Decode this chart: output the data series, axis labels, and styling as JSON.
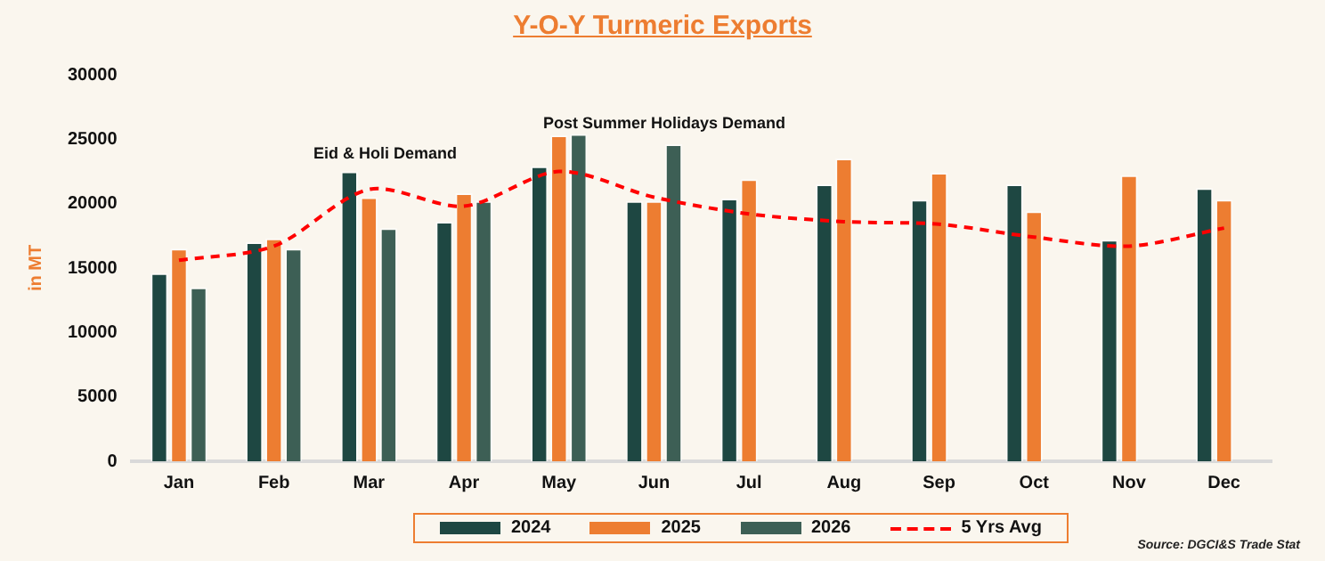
{
  "chart_data": {
    "type": "bar",
    "title": "Y-O-Y Turmeric Exports",
    "ylabel": "in MT",
    "categories": [
      "Jan",
      "Feb",
      "Mar",
      "Apr",
      "May",
      "Jun",
      "Jul",
      "Aug",
      "Sep",
      "Oct",
      "Nov",
      "Dec"
    ],
    "series": [
      {
        "name": "2024",
        "color": "#1e4742",
        "values": [
          14600,
          17000,
          22500,
          18600,
          22900,
          20200,
          20400,
          21500,
          20300,
          21500,
          17200,
          21200
        ]
      },
      {
        "name": "2025",
        "color": "#ed7d31",
        "values": [
          16500,
          17300,
          20500,
          20800,
          25300,
          20200,
          21900,
          23500,
          22400,
          19400,
          22200,
          20300
        ]
      },
      {
        "name": "2026",
        "color": "#3d5f55",
        "values": [
          13500,
          16500,
          18100,
          20200,
          25400,
          24600,
          null,
          null,
          null,
          null,
          null,
          null
        ]
      },
      {
        "name": "5 Yrs Avg",
        "type": "line",
        "color": "#ff0000",
        "line_style": "dashed",
        "marker": "none",
        "values": [
          15600,
          16700,
          21100,
          19800,
          22500,
          20500,
          19200,
          18600,
          18400,
          17400,
          16700,
          18100
        ]
      }
    ],
    "ylim": [
      0,
      30000
    ],
    "yticks": [
      0,
      5000,
      10000,
      15000,
      20000,
      25000,
      30000
    ],
    "grid": false,
    "legend": "bottom",
    "annotations": [
      "Eid & Holi Demand",
      "Post Summer Holidays Demand",
      "Source: DGCI&S Trade Stat"
    ]
  }
}
